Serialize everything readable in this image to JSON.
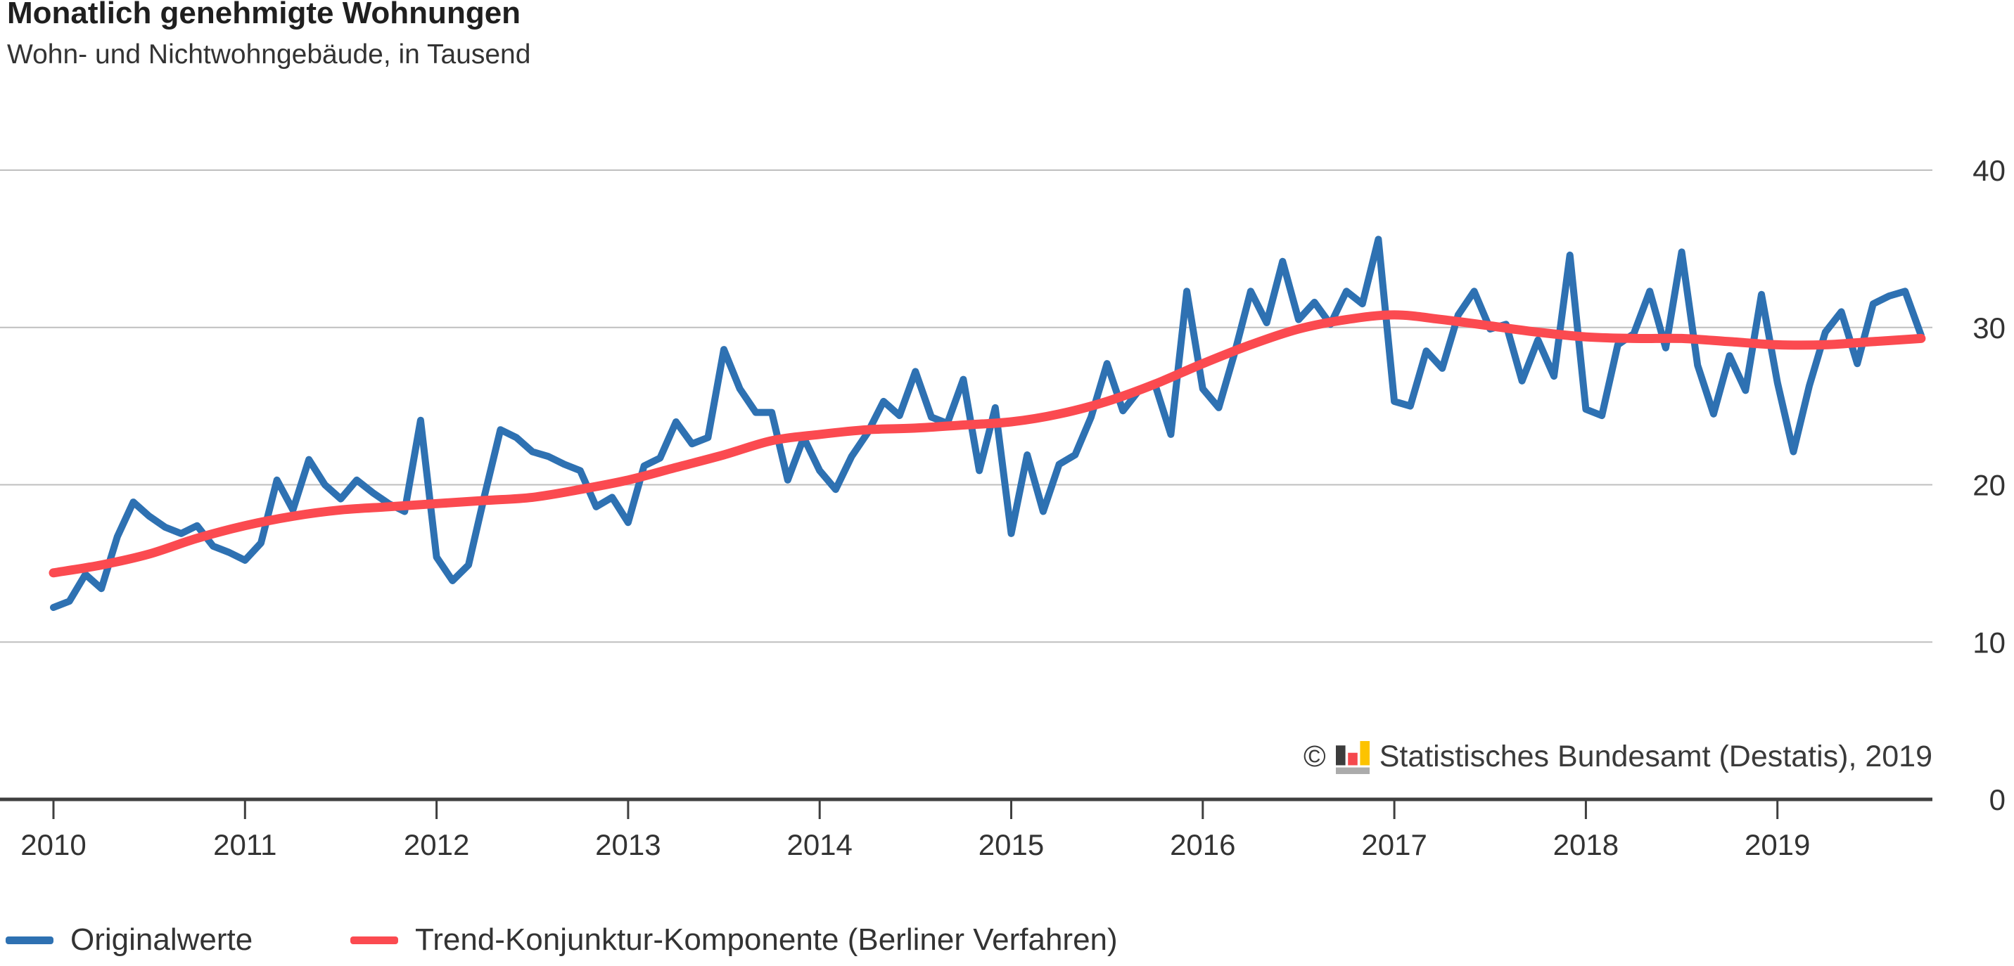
{
  "header": {
    "title": "Monatlich genehmigte Wohnungen",
    "subtitle": "Wohn- und Nichtwohngebäude, in Tausend"
  },
  "source": {
    "copyright_symbol": "©",
    "text": "Statistisches Bundesamt (Destatis), 2019",
    "logo_colors": {
      "bar_black": "#3c3c3c",
      "bar_red": "#f5484d",
      "bar_yellow": "#fdc300",
      "base_gray": "#ababab"
    }
  },
  "legend": {
    "items": [
      {
        "label": "Originalwerte",
        "color": "#2e71b2"
      },
      {
        "label": "Trend-Konjunktur-Komponente (Berliner Verfahren)",
        "color": "#fb4a50"
      }
    ]
  },
  "colors": {
    "blue_line": "#2e71b2",
    "red_line": "#fb4a50",
    "gridline": "#bfbfbf",
    "axis": "#3f3f3f",
    "tick_text": "#333333"
  },
  "chart_data": {
    "type": "line",
    "title": "Monatlich genehmigte Wohnungen",
    "subtitle": "Wohn- und Nichtwohngebäude, in Tausend",
    "unit": "Tausend (thousand dwellings per month)",
    "x_start": "2010-01",
    "x_end": "2019-10",
    "months_total": 118,
    "x_tick_labels": [
      "2010",
      "2011",
      "2012",
      "2013",
      "2014",
      "2015",
      "2016",
      "2017",
      "2018",
      "2019"
    ],
    "y_tick_labels": [
      "40",
      "30",
      "20",
      "10",
      "0"
    ],
    "y_tick_values": [
      40,
      30,
      20,
      10,
      0
    ],
    "ylim": [
      0,
      40
    ],
    "grid": "horizontal",
    "legend_position": "bottom-left",
    "series": [
      {
        "name": "Originalwerte",
        "color": "#2e71b2",
        "kind": "monthly",
        "values": [
          12.2,
          12.6,
          14.3,
          13.4,
          16.7,
          18.9,
          18.0,
          17.3,
          16.9,
          17.4,
          16.1,
          15.7,
          15.2,
          16.3,
          20.3,
          18.4,
          21.6,
          20.0,
          19.1,
          20.3,
          19.5,
          18.8,
          18.3,
          24.1,
          15.4,
          13.9,
          14.9,
          19.3,
          23.5,
          23.0,
          22.1,
          21.8,
          21.3,
          20.9,
          18.6,
          19.2,
          17.6,
          21.2,
          21.7,
          24.0,
          22.6,
          23.0,
          28.6,
          26.1,
          24.6,
          24.6,
          20.3,
          23.0,
          20.9,
          19.7,
          21.8,
          23.3,
          25.3,
          24.4,
          27.2,
          24.3,
          23.9,
          26.7,
          20.9,
          24.9,
          16.9,
          21.9,
          18.3,
          21.3,
          21.9,
          24.3,
          27.7,
          24.7,
          26.0,
          26.4,
          23.2,
          32.3,
          26.1,
          24.9,
          28.4,
          32.3,
          30.3,
          34.2,
          30.5,
          31.6,
          30.2,
          32.3,
          31.5,
          35.6,
          25.3,
          25.0,
          28.5,
          27.4,
          30.8,
          32.3,
          29.9,
          30.2,
          26.6,
          29.2,
          26.9,
          34.6,
          24.8,
          24.4,
          28.9,
          29.6,
          32.3,
          28.7,
          34.8,
          27.6,
          24.5,
          28.2,
          26.0,
          32.1,
          26.5,
          22.1,
          26.3,
          29.7,
          31.0,
          27.7,
          31.5,
          32.0,
          32.3,
          29.5
        ]
      },
      {
        "name": "Trend-Konjunktur-Komponente (Berliner Verfahren)",
        "color": "#fb4a50",
        "kind": "smooth-control-points",
        "control_points": [
          [
            0,
            14.4
          ],
          [
            3,
            14.9
          ],
          [
            6,
            15.6
          ],
          [
            9,
            16.6
          ],
          [
            12,
            17.4
          ],
          [
            15,
            18.0
          ],
          [
            18,
            18.4
          ],
          [
            21,
            18.6
          ],
          [
            24,
            18.8
          ],
          [
            27,
            19.0
          ],
          [
            30,
            19.2
          ],
          [
            33,
            19.7
          ],
          [
            36,
            20.3
          ],
          [
            39,
            21.1
          ],
          [
            42,
            21.9
          ],
          [
            45,
            22.8
          ],
          [
            48,
            23.2
          ],
          [
            51,
            23.5
          ],
          [
            54,
            23.6
          ],
          [
            57,
            23.8
          ],
          [
            60,
            24.0
          ],
          [
            63,
            24.5
          ],
          [
            66,
            25.3
          ],
          [
            69,
            26.4
          ],
          [
            72,
            27.7
          ],
          [
            75,
            28.9
          ],
          [
            78,
            29.9
          ],
          [
            81,
            30.5
          ],
          [
            84,
            30.8
          ],
          [
            87,
            30.5
          ],
          [
            90,
            30.1
          ],
          [
            93,
            29.7
          ],
          [
            96,
            29.4
          ],
          [
            99,
            29.3
          ],
          [
            102,
            29.3
          ],
          [
            105,
            29.1
          ],
          [
            108,
            28.9
          ],
          [
            111,
            28.9
          ],
          [
            114,
            29.1
          ],
          [
            117,
            29.3
          ]
        ]
      }
    ]
  }
}
